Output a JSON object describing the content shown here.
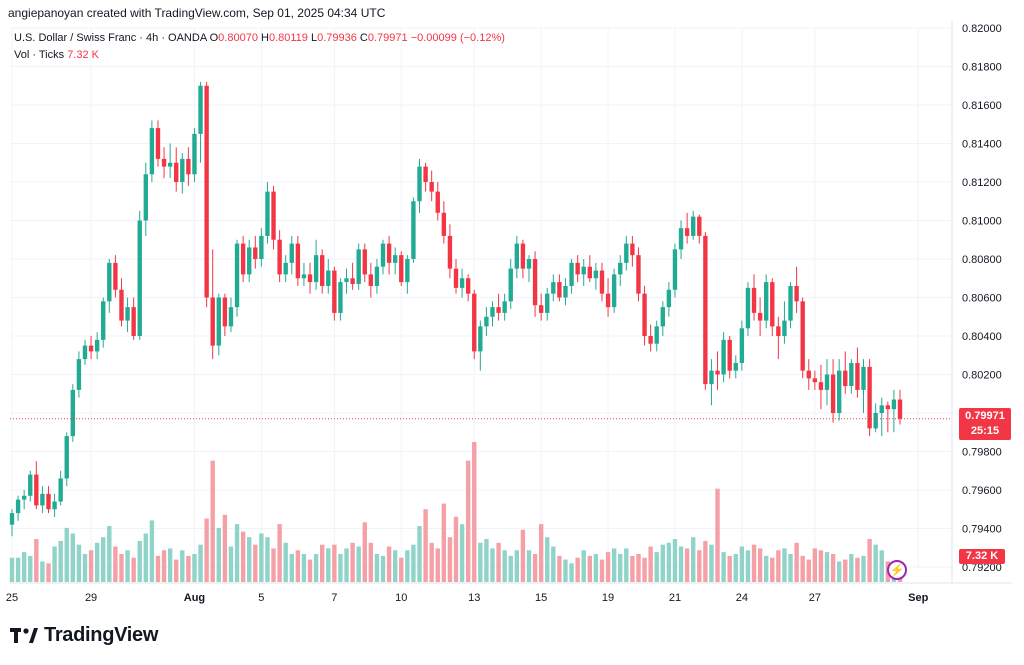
{
  "header": {
    "credit": "angiepanoyan created with TradingView.com, Sep 01, 2025 04:34 UTC",
    "symbol": "U.S. Dollar / Swiss Franc · 4h · OANDA",
    "o_label": "O",
    "o_value": "0.80070",
    "h_label": "H",
    "h_value": "0.80119",
    "l_label": "L",
    "l_value": "0.79936",
    "c_label": "C",
    "c_value": "0.79971",
    "change": "−0.00099 (−0.12%)",
    "vol_label": "Vol · Ticks",
    "vol_value": "7.32 K"
  },
  "price_tag": {
    "price": "0.79971",
    "countdown": "25:15"
  },
  "vol_tag": "7.32 K",
  "logo": {
    "text": "TradingView"
  },
  "colors": {
    "up": "#22ab94",
    "down": "#f23645",
    "up_vol": "#8fd3c9",
    "down_vol": "#f5a0a6",
    "grid": "#f0f3fa"
  },
  "chart_data": {
    "type": "candlestick",
    "title": "U.S. Dollar / Swiss Franc · 4h · OANDA",
    "y_ticks": [
      "0.82000",
      "0.81800",
      "0.81600",
      "0.81400",
      "0.81200",
      "0.81000",
      "0.80800",
      "0.80600",
      "0.80400",
      "0.80200",
      "0.80000",
      "0.79800",
      "0.79600",
      "0.79400",
      "0.79200"
    ],
    "ylim": [
      0.792,
      0.82
    ],
    "x_ticks": [
      {
        "label": "25",
        "bar": 0
      },
      {
        "label": "29",
        "bar": 13
      },
      {
        "label": "Aug",
        "bar": 30
      },
      {
        "label": "5",
        "bar": 41
      },
      {
        "label": "7",
        "bar": 53
      },
      {
        "label": "10",
        "bar": 64
      },
      {
        "label": "13",
        "bar": 76
      },
      {
        "label": "15",
        "bar": 87
      },
      {
        "label": "19",
        "bar": 98
      },
      {
        "label": "21",
        "bar": 109
      },
      {
        "label": "24",
        "bar": 120
      },
      {
        "label": "27",
        "bar": 132
      },
      {
        "label": "Sep",
        "bar": 149
      }
    ],
    "candles": [
      [
        0.7942,
        0.795,
        0.7936,
        0.7948,
        26
      ],
      [
        0.7948,
        0.7957,
        0.7944,
        0.7955,
        26
      ],
      [
        0.7955,
        0.796,
        0.795,
        0.7957,
        32
      ],
      [
        0.7957,
        0.797,
        0.7954,
        0.7968,
        28
      ],
      [
        0.7968,
        0.7975,
        0.795,
        0.7952,
        46
      ],
      [
        0.7952,
        0.7962,
        0.7948,
        0.7958,
        22
      ],
      [
        0.7958,
        0.7962,
        0.7948,
        0.795,
        20
      ],
      [
        0.795,
        0.7958,
        0.7946,
        0.7954,
        38
      ],
      [
        0.7954,
        0.797,
        0.7952,
        0.7966,
        44
      ],
      [
        0.7966,
        0.799,
        0.7962,
        0.7988,
        58
      ],
      [
        0.7988,
        0.8015,
        0.7985,
        0.8012,
        52
      ],
      [
        0.8012,
        0.8032,
        0.8008,
        0.8028,
        40
      ],
      [
        0.8028,
        0.8038,
        0.8025,
        0.8035,
        30
      ],
      [
        0.8035,
        0.804,
        0.8028,
        0.8032,
        34
      ],
      [
        0.8032,
        0.8042,
        0.8028,
        0.8038,
        42
      ],
      [
        0.8038,
        0.806,
        0.8034,
        0.8058,
        48
      ],
      [
        0.8058,
        0.808,
        0.8052,
        0.8078,
        60
      ],
      [
        0.8078,
        0.8082,
        0.806,
        0.8064,
        38
      ],
      [
        0.8064,
        0.807,
        0.8045,
        0.8048,
        30
      ],
      [
        0.8048,
        0.806,
        0.8042,
        0.8055,
        34
      ],
      [
        0.8055,
        0.806,
        0.8038,
        0.804,
        26
      ],
      [
        0.804,
        0.8105,
        0.8038,
        0.81,
        44
      ],
      [
        0.81,
        0.813,
        0.8092,
        0.8124,
        52
      ],
      [
        0.8124,
        0.8152,
        0.812,
        0.8148,
        66
      ],
      [
        0.8148,
        0.8152,
        0.8128,
        0.8132,
        28
      ],
      [
        0.8132,
        0.8138,
        0.8122,
        0.8128,
        34
      ],
      [
        0.8128,
        0.814,
        0.8122,
        0.813,
        36
      ],
      [
        0.813,
        0.8138,
        0.8115,
        0.812,
        24
      ],
      [
        0.812,
        0.8135,
        0.8114,
        0.8132,
        34
      ],
      [
        0.8132,
        0.8138,
        0.8118,
        0.8124,
        28
      ],
      [
        0.8124,
        0.8148,
        0.812,
        0.8145,
        30
      ],
      [
        0.8145,
        0.8172,
        0.813,
        0.817,
        40
      ],
      [
        0.817,
        0.8172,
        0.8055,
        0.806,
        68
      ],
      [
        0.806,
        0.8085,
        0.8028,
        0.8035,
        130
      ],
      [
        0.8035,
        0.8062,
        0.803,
        0.806,
        58
      ],
      [
        0.806,
        0.8062,
        0.804,
        0.8045,
        72
      ],
      [
        0.8045,
        0.806,
        0.8042,
        0.8055,
        38
      ],
      [
        0.8055,
        0.809,
        0.805,
        0.8088,
        62
      ],
      [
        0.8088,
        0.8092,
        0.8068,
        0.8072,
        54
      ],
      [
        0.8072,
        0.809,
        0.8068,
        0.8086,
        48
      ],
      [
        0.8086,
        0.8092,
        0.8075,
        0.808,
        40
      ],
      [
        0.808,
        0.8096,
        0.8076,
        0.8092,
        52
      ],
      [
        0.8092,
        0.812,
        0.8088,
        0.8115,
        48
      ],
      [
        0.8115,
        0.8118,
        0.8085,
        0.809,
        36
      ],
      [
        0.809,
        0.8095,
        0.8068,
        0.8072,
        62
      ],
      [
        0.8072,
        0.8082,
        0.8068,
        0.8078,
        42
      ],
      [
        0.8078,
        0.8092,
        0.8072,
        0.8088,
        30
      ],
      [
        0.8088,
        0.8092,
        0.8066,
        0.807,
        34
      ],
      [
        0.807,
        0.8078,
        0.8066,
        0.8072,
        30
      ],
      [
        0.8072,
        0.8078,
        0.8062,
        0.8068,
        24
      ],
      [
        0.8068,
        0.809,
        0.8064,
        0.8082,
        30
      ],
      [
        0.8082,
        0.8085,
        0.8062,
        0.8066,
        40
      ],
      [
        0.8066,
        0.808,
        0.8062,
        0.8074,
        36
      ],
      [
        0.8074,
        0.8076,
        0.8048,
        0.8052,
        40
      ],
      [
        0.8052,
        0.807,
        0.8048,
        0.8068,
        30
      ],
      [
        0.8068,
        0.8075,
        0.8062,
        0.807,
        36
      ],
      [
        0.807,
        0.8078,
        0.8064,
        0.8067,
        42
      ],
      [
        0.8067,
        0.8088,
        0.8064,
        0.8085,
        38
      ],
      [
        0.8085,
        0.8088,
        0.8068,
        0.8072,
        64
      ],
      [
        0.8072,
        0.8078,
        0.806,
        0.8066,
        42
      ],
      [
        0.8066,
        0.808,
        0.8062,
        0.8076,
        30
      ],
      [
        0.8076,
        0.809,
        0.8072,
        0.8088,
        28
      ],
      [
        0.8088,
        0.8092,
        0.8072,
        0.8078,
        38
      ],
      [
        0.8078,
        0.8086,
        0.8072,
        0.8082,
        34
      ],
      [
        0.8082,
        0.8084,
        0.8066,
        0.8068,
        26
      ],
      [
        0.8068,
        0.8082,
        0.8062,
        0.808,
        34
      ],
      [
        0.808,
        0.8112,
        0.8078,
        0.811,
        40
      ],
      [
        0.811,
        0.8132,
        0.8104,
        0.8128,
        60
      ],
      [
        0.8128,
        0.813,
        0.8115,
        0.812,
        78
      ],
      [
        0.812,
        0.8126,
        0.811,
        0.8115,
        42
      ],
      [
        0.8115,
        0.812,
        0.81,
        0.8104,
        36
      ],
      [
        0.8104,
        0.811,
        0.8088,
        0.8092,
        84
      ],
      [
        0.8092,
        0.8098,
        0.807,
        0.8075,
        48
      ],
      [
        0.8075,
        0.808,
        0.8062,
        0.8065,
        70
      ],
      [
        0.8065,
        0.8075,
        0.806,
        0.807,
        62
      ],
      [
        0.807,
        0.8072,
        0.8058,
        0.8062,
        130
      ],
      [
        0.8062,
        0.8064,
        0.8028,
        0.8032,
        150
      ],
      [
        0.8032,
        0.8048,
        0.8022,
        0.8045,
        42
      ],
      [
        0.8045,
        0.8055,
        0.804,
        0.805,
        46
      ],
      [
        0.805,
        0.8058,
        0.8045,
        0.8055,
        36
      ],
      [
        0.8055,
        0.8062,
        0.8048,
        0.8052,
        42
      ],
      [
        0.8052,
        0.8062,
        0.8048,
        0.8058,
        34
      ],
      [
        0.8058,
        0.808,
        0.8054,
        0.8075,
        28
      ],
      [
        0.8075,
        0.8092,
        0.807,
        0.8088,
        34
      ],
      [
        0.8088,
        0.809,
        0.807,
        0.8075,
        56
      ],
      [
        0.8075,
        0.8082,
        0.8068,
        0.808,
        34
      ],
      [
        0.808,
        0.8084,
        0.805,
        0.8056,
        30
      ],
      [
        0.8056,
        0.8062,
        0.8048,
        0.8052,
        62
      ],
      [
        0.8052,
        0.8065,
        0.8048,
        0.8062,
        48
      ],
      [
        0.8062,
        0.8072,
        0.8058,
        0.8068,
        38
      ],
      [
        0.8068,
        0.8072,
        0.8058,
        0.806,
        28
      ],
      [
        0.806,
        0.807,
        0.8056,
        0.8066,
        24
      ],
      [
        0.8066,
        0.808,
        0.8062,
        0.8078,
        20
      ],
      [
        0.8078,
        0.8082,
        0.8068,
        0.8072,
        26
      ],
      [
        0.8072,
        0.808,
        0.8066,
        0.8076,
        34
      ],
      [
        0.8076,
        0.8082,
        0.8068,
        0.807,
        28
      ],
      [
        0.807,
        0.8078,
        0.8064,
        0.8074,
        30
      ],
      [
        0.8074,
        0.8078,
        0.8058,
        0.8062,
        24
      ],
      [
        0.8062,
        0.807,
        0.805,
        0.8055,
        32
      ],
      [
        0.8055,
        0.8075,
        0.8052,
        0.8072,
        36
      ],
      [
        0.8072,
        0.8082,
        0.8066,
        0.8078,
        30
      ],
      [
        0.8078,
        0.8092,
        0.8074,
        0.8088,
        36
      ],
      [
        0.8088,
        0.8092,
        0.8076,
        0.8082,
        28
      ],
      [
        0.8082,
        0.8086,
        0.8058,
        0.8062,
        30
      ],
      [
        0.8062,
        0.8066,
        0.8035,
        0.804,
        26
      ],
      [
        0.804,
        0.8046,
        0.8032,
        0.8036,
        38
      ],
      [
        0.8036,
        0.8048,
        0.8032,
        0.8045,
        32
      ],
      [
        0.8045,
        0.8058,
        0.804,
        0.8055,
        40
      ],
      [
        0.8055,
        0.8068,
        0.805,
        0.8064,
        42
      ],
      [
        0.8064,
        0.8088,
        0.806,
        0.8085,
        46
      ],
      [
        0.8085,
        0.81,
        0.808,
        0.8096,
        38
      ],
      [
        0.8096,
        0.8104,
        0.8088,
        0.8092,
        36
      ],
      [
        0.8092,
        0.8105,
        0.809,
        0.8102,
        48
      ],
      [
        0.8102,
        0.8103,
        0.8088,
        0.8092,
        34
      ],
      [
        0.8092,
        0.8094,
        0.8012,
        0.8015,
        44
      ],
      [
        0.8015,
        0.8028,
        0.8004,
        0.8022,
        40
      ],
      [
        0.8022,
        0.8032,
        0.8012,
        0.802,
        100
      ],
      [
        0.802,
        0.8042,
        0.8016,
        0.8038,
        32
      ],
      [
        0.8038,
        0.804,
        0.8018,
        0.8022,
        28
      ],
      [
        0.8022,
        0.803,
        0.8018,
        0.8026,
        30
      ],
      [
        0.8026,
        0.8048,
        0.8022,
        0.8044,
        38
      ],
      [
        0.8044,
        0.8068,
        0.804,
        0.8065,
        34
      ],
      [
        0.8065,
        0.8072,
        0.8048,
        0.8052,
        40
      ],
      [
        0.8052,
        0.806,
        0.804,
        0.8048,
        36
      ],
      [
        0.8048,
        0.8072,
        0.8044,
        0.8068,
        28
      ],
      [
        0.8068,
        0.807,
        0.804,
        0.8045,
        26
      ],
      [
        0.8045,
        0.805,
        0.8028,
        0.804,
        34
      ],
      [
        0.804,
        0.8058,
        0.8036,
        0.8048,
        36
      ],
      [
        0.8048,
        0.8068,
        0.8044,
        0.8066,
        30
      ],
      [
        0.8066,
        0.8076,
        0.8052,
        0.8058,
        42
      ],
      [
        0.8058,
        0.806,
        0.8018,
        0.8022,
        28
      ],
      [
        0.8022,
        0.8028,
        0.8012,
        0.8018,
        24
      ],
      [
        0.8018,
        0.8022,
        0.8012,
        0.8016,
        36
      ],
      [
        0.8016,
        0.8025,
        0.8002,
        0.8012,
        34
      ],
      [
        0.8012,
        0.8028,
        0.8004,
        0.802,
        32
      ],
      [
        0.802,
        0.8028,
        0.7995,
        0.8,
        30
      ],
      [
        0.8,
        0.8028,
        0.7996,
        0.8022,
        22
      ],
      [
        0.8022,
        0.8032,
        0.801,
        0.8014,
        24
      ],
      [
        0.8014,
        0.8028,
        0.801,
        0.8026,
        30
      ],
      [
        0.8026,
        0.8034,
        0.8008,
        0.8012,
        26
      ],
      [
        0.8012,
        0.8028,
        0.8,
        0.8024,
        28
      ],
      [
        0.8024,
        0.8028,
        0.7988,
        0.7992,
        46
      ],
      [
        0.7992,
        0.8005,
        0.799,
        0.8,
        40
      ],
      [
        0.8,
        0.8008,
        0.7988,
        0.8004,
        34
      ],
      [
        0.8004,
        0.8006,
        0.799,
        0.8002,
        22
      ],
      [
        0.8002,
        0.8012,
        0.799,
        0.8007,
        22
      ],
      [
        0.8007,
        0.8012,
        0.7994,
        0.7997,
        18
      ]
    ]
  }
}
